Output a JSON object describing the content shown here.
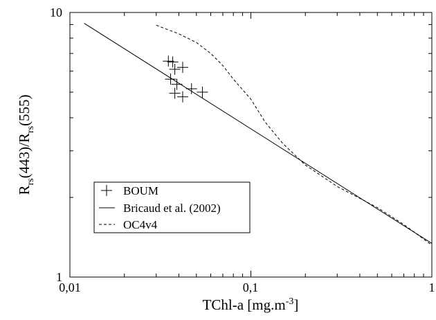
{
  "chart_data": {
    "type": "scatter",
    "xlabel": {
      "base": "TChl-a [mg.m",
      "sup": "-3",
      "tail": "]"
    },
    "ylabel": {
      "r1": "R",
      "sub1": "rs",
      "mid": "(443)/R",
      "sub2": "rs",
      "tail": "(555)"
    },
    "x_scale": "log",
    "y_scale": "log",
    "xlim": [
      0.01,
      1
    ],
    "ylim": [
      1,
      10
    ],
    "x_tick_labels": [
      "0,01",
      "0,1",
      "1"
    ],
    "y_tick_labels": [
      "1",
      "10"
    ],
    "grid": false,
    "legend_position": "bottom-left",
    "series": [
      {
        "name": "BOUM",
        "style": "plus-markers",
        "points": [
          {
            "x": 0.035,
            "y": 6.55
          },
          {
            "x": 0.037,
            "y": 6.5
          },
          {
            "x": 0.038,
            "y": 6.1
          },
          {
            "x": 0.042,
            "y": 6.2
          },
          {
            "x": 0.036,
            "y": 5.6
          },
          {
            "x": 0.039,
            "y": 5.35
          },
          {
            "x": 0.047,
            "y": 5.15
          },
          {
            "x": 0.054,
            "y": 5.0
          },
          {
            "x": 0.038,
            "y": 4.95
          },
          {
            "x": 0.042,
            "y": 4.8
          }
        ]
      },
      {
        "name": "Bricaud et al. (2002)",
        "style": "solid",
        "x": [
          0.012,
          1
        ],
        "y": [
          9.1,
          1.34
        ]
      },
      {
        "name": "OC4v4",
        "style": "dashed",
        "x": [
          0.03,
          0.04,
          0.05,
          0.06,
          0.07,
          0.08,
          0.1,
          0.12,
          0.15,
          0.2,
          0.3,
          0.5,
          0.7,
          1.0
        ],
        "y": [
          8.95,
          8.3,
          7.7,
          7.0,
          6.3,
          5.6,
          4.7,
          3.85,
          3.2,
          2.65,
          2.2,
          1.83,
          1.58,
          1.32
        ]
      }
    ]
  }
}
